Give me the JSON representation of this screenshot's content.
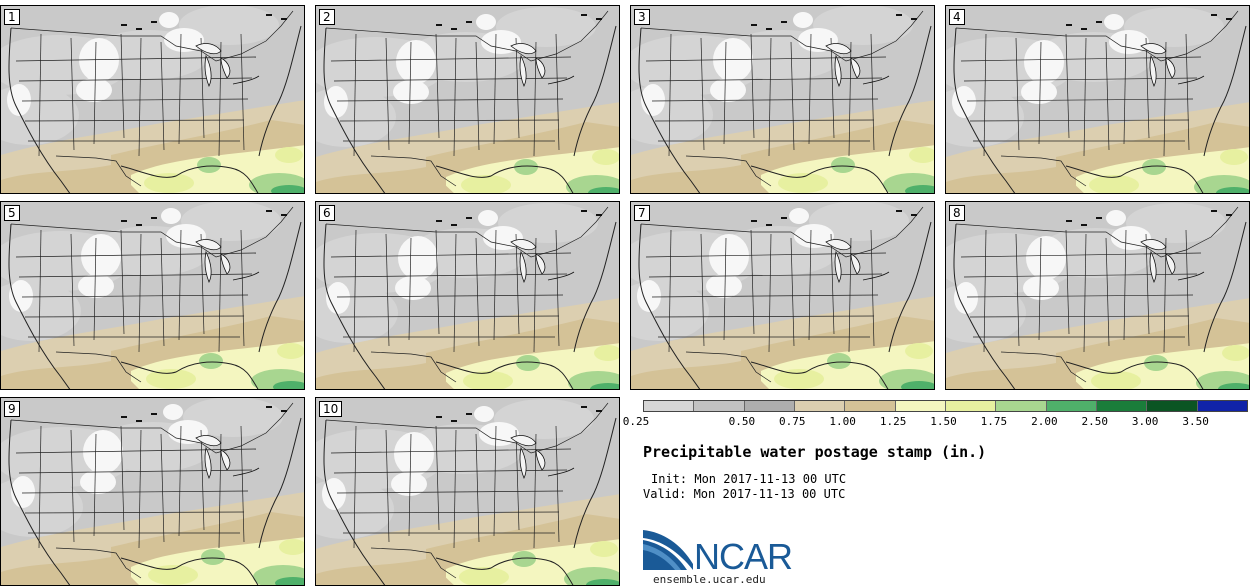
{
  "panels": [
    {
      "label": "1"
    },
    {
      "label": "2"
    },
    {
      "label": "3"
    },
    {
      "label": "4"
    },
    {
      "label": "5"
    },
    {
      "label": "6"
    },
    {
      "label": "7"
    },
    {
      "label": "8"
    },
    {
      "label": "9"
    },
    {
      "label": "10"
    }
  ],
  "legend": {
    "ticks": [
      "0.25",
      "0.50",
      "0.75",
      "1.00",
      "1.25",
      "1.50",
      "1.75",
      "2.00",
      "2.50",
      "3.00",
      "3.50"
    ],
    "colors": [
      "#d6d6d6",
      "#c2c2c2",
      "#aeaeae",
      "#dccfb0",
      "#d4c297",
      "#f4f6c0",
      "#e7f0a0",
      "#a8d690",
      "#4fb06a",
      "#1a7d3a",
      "#0b5523",
      "#1023a8"
    ]
  },
  "title": "Precipitable water postage stamp (in.)",
  "init": "Init: Mon 2017-11-13 00 UTC",
  "valid": "Valid: Mon 2017-11-13 00 UTC",
  "logo": {
    "text": "NCAR"
  },
  "site": "ensemble.ucar.edu"
}
